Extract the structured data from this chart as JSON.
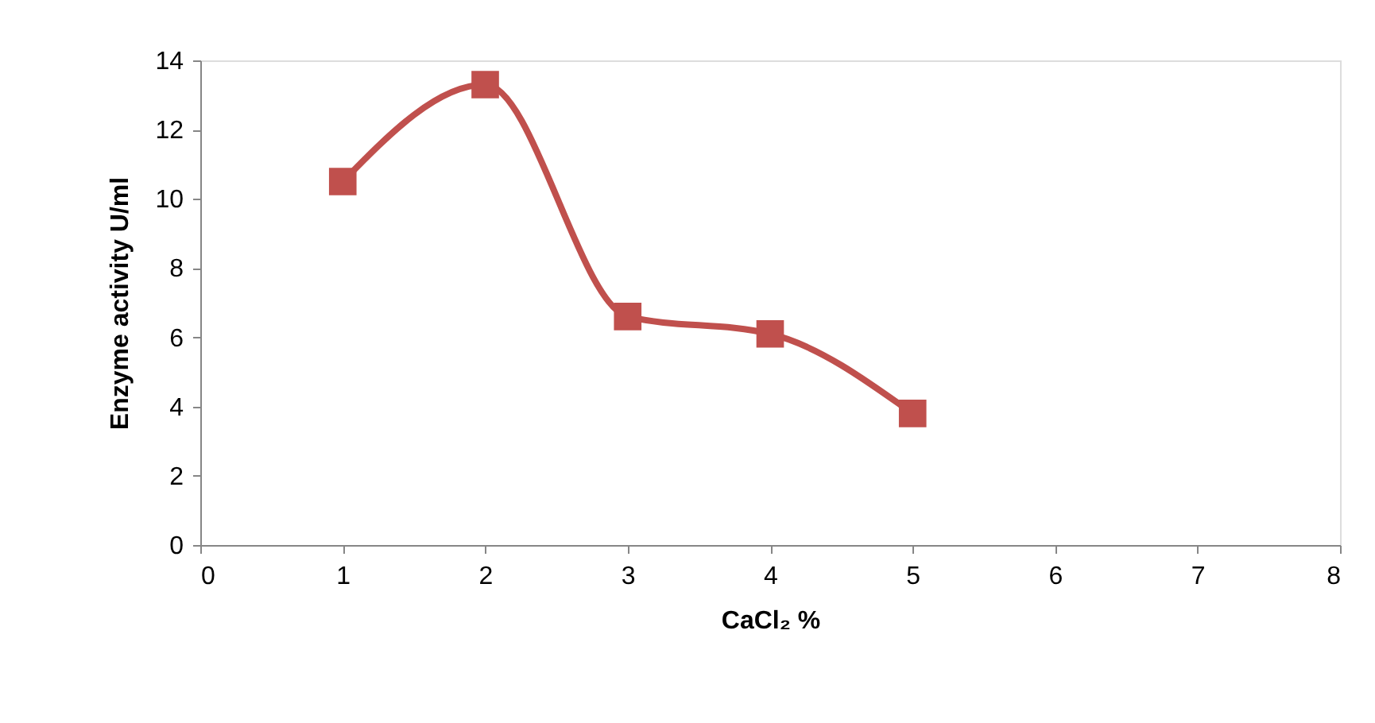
{
  "chart_data": {
    "type": "line",
    "xlabel": "CaCl₂ %",
    "ylabel": "Enzyme activity U/ml",
    "x": [
      1,
      2,
      3,
      4,
      5
    ],
    "series": [
      {
        "color": "#c0504d",
        "values": [
          10.5,
          13.3,
          6.6,
          6.1,
          3.8
        ]
      }
    ],
    "xlim": [
      0,
      8
    ],
    "xticks": [
      0,
      1,
      2,
      3,
      4,
      5,
      6,
      7,
      8
    ],
    "ylim": [
      0,
      14
    ],
    "yticks": [
      0,
      2,
      4,
      6,
      8,
      10,
      12,
      14
    ],
    "grid": false,
    "marker": "square",
    "line_style": "solid"
  }
}
